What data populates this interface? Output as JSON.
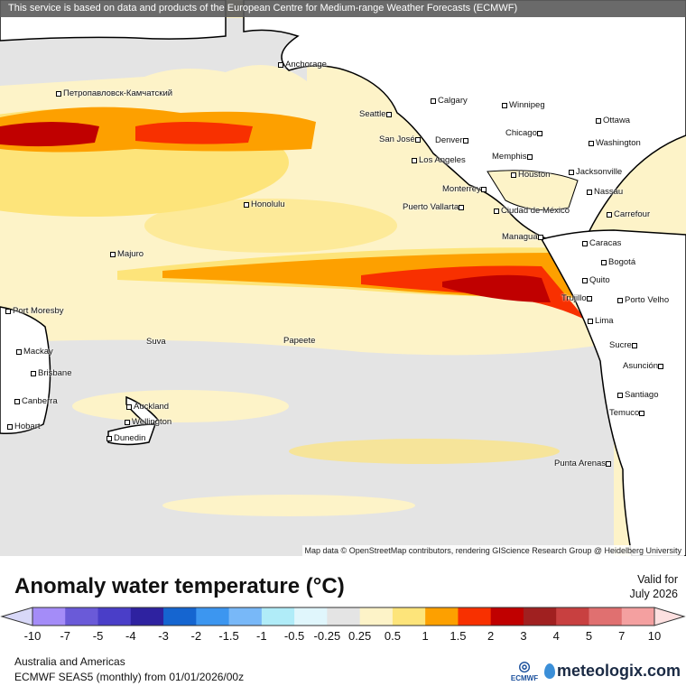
{
  "banner": "This service is based on data and products of the European Centre for Medium-range Weather Forecasts (ECMWF)",
  "attribution": "Map data © OpenStreetMap contributors, rendering GIScience Research Group @ Heidelberg University",
  "cities": [
    "Anchorage",
    "Петропавловск-Камчатский",
    "Calgary",
    "Winnipeg",
    "Seattle",
    "Ottawa",
    "San José",
    "Denver",
    "Chicago",
    "Washington",
    "Memphis",
    "Los Angeles",
    "Jacksonville",
    "Houston",
    "Honolulu",
    "Monterrey",
    "Nassau",
    "Puerto Vallarta",
    "Ciudad de México",
    "Carrefour",
    "Managua",
    "Caracas",
    "Majuro",
    "Bogotá",
    "Quito",
    "Trujillo",
    "Porto Velho",
    "Port Moresby",
    "Lima",
    "Suva",
    "Papeete",
    "Sucre",
    "Mackay",
    "Asunción",
    "Brisbane",
    "Santiago",
    "Canberra",
    "Auckland",
    "Temuco",
    "Wellington",
    "Hobart",
    "Dunedin",
    "Punta Arenas"
  ],
  "legend": {
    "title": "Anomaly water temperature (°C)",
    "valid_label": "Valid for",
    "valid_date": "July 2026",
    "ticks": [
      "-10",
      "-7",
      "-5",
      "-4",
      "-3",
      "-2",
      "-1.5",
      "-1",
      "-0.5",
      "-0.25",
      "0.25",
      "0.5",
      "1",
      "1.5",
      "2",
      "3",
      "4",
      "5",
      "7",
      "10"
    ],
    "colors": [
      "#a48cf8",
      "#6a5ad8",
      "#4a3ec8",
      "#2e22a0",
      "#1565d0",
      "#3c96f0",
      "#78b8f8",
      "#b0ecf8",
      "#e0f6fc",
      "#e4e4e4",
      "#fdf3c8",
      "#fde47a",
      "#fda000",
      "#f83000",
      "#c00000",
      "#a02020",
      "#c84040",
      "#e07070",
      "#f4a0a0"
    ],
    "under_color": "#d8d8f8",
    "over_color": "#fde0e0"
  },
  "footer": {
    "region": "Australia and Americas",
    "model": "ECMWF SEAS5 (monthly) from 01/01/2026/00z",
    "ecmwf_logo": "ECMWF",
    "brand": "meteologix.com"
  }
}
